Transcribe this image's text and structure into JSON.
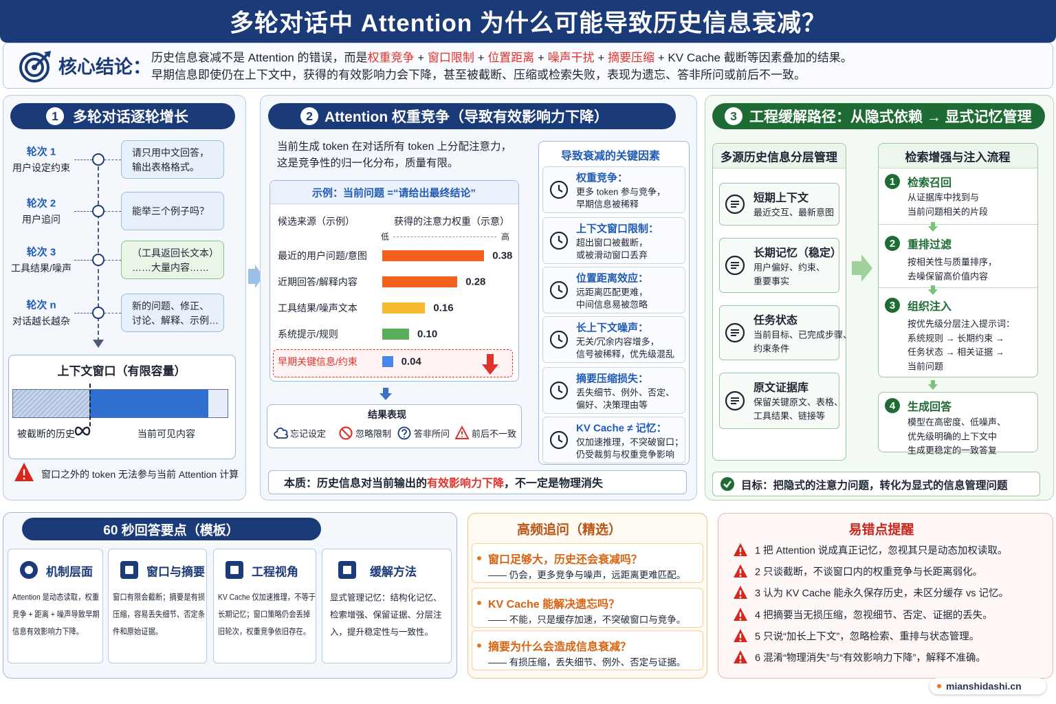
{
  "header": {
    "title": "多轮对话中 Attention 为什么可能导致历史信息衰减？"
  },
  "core": {
    "label": "核心结论：",
    "line1": [
      {
        "text": "历史信息衰减不是 Attention 的错误，而是"
      },
      {
        "text": "权重竞争",
        "em": true
      },
      {
        "text": " + "
      },
      {
        "text": "窗口限制",
        "em": true
      },
      {
        "text": " + "
      },
      {
        "text": "位置距离",
        "em": true
      },
      {
        "text": " + "
      },
      {
        "text": "噪声干扰",
        "em": true
      },
      {
        "text": " + "
      },
      {
        "text": "摘要压缩",
        "em": true
      },
      {
        "text": " + KV Cache 截断等因素叠加的结果。"
      }
    ],
    "line2": "早期信息即使仍在上下文中，获得的有效影响力会下降，甚至被截断、压缩或检索失败，表现为遗忘、答非所问或前后不一致。"
  },
  "panel1": {
    "num": "1",
    "title": "多轮对话逐轮增长",
    "turns": [
      {
        "round": "轮次 1",
        "desc": "用户设定约束",
        "bubble": [
          "请只用中文回答，",
          "输出表格格式。"
        ],
        "color": "#e8f0fb"
      },
      {
        "round": "轮次 2",
        "desc": "用户追问",
        "bubble": [
          "能举三个例子吗？"
        ],
        "color": "#e8f0fb"
      },
      {
        "round": "轮次 3",
        "desc": "工具结果/噪声",
        "bubble": [
          "（工具返回长文本）",
          "……大量内容……"
        ],
        "color": "#eaf5e8"
      },
      {
        "round": "轮次 n",
        "desc": "对话越长越杂",
        "bubble": [
          "新的问题、修正、",
          "讨论、解释、示例…"
        ],
        "color": "#e8f0fb"
      }
    ],
    "window": {
      "title": "上下文窗口（有限容量）",
      "left": "被截断的历史",
      "right": "当前可见内容"
    },
    "warning": "窗口之外的 token 无法参与当前 Attention 计算"
  },
  "panel2": {
    "num": "2",
    "title": "Attention 权重竞争（导致有效影响力下降）",
    "intro": [
      "当前生成 token 在对话所有 token 上分配注意力，",
      "这是竞争性的归一化分布，质量有限。"
    ],
    "example": {
      "title": "示例：当前问题 =“请给出最终结论”",
      "col1": "候选来源（示例）",
      "col2": "获得的注意力权重（示意）",
      "low": "低",
      "high": "高",
      "bars": {
        "categories": [
          "最近的用户问题/意图",
          "近期回答/解释内容",
          "工具结果/噪声文本",
          "系统提示/规则",
          "早期关键信息/约束"
        ],
        "values": [
          0.38,
          0.28,
          0.16,
          0.1,
          0.04
        ],
        "value_labels": [
          "0.38",
          "0.28",
          "0.16",
          "0.10",
          "0.04"
        ],
        "colors": [
          "#f2611d",
          "#f2611d",
          "#f6b92f",
          "#5aae5a",
          "#4a86e8"
        ]
      }
    },
    "results": {
      "title": "结果表现",
      "items": [
        "忘记设定",
        "忽略限制",
        "答非所问",
        "前后不一致"
      ]
    },
    "factors": {
      "title": "导致衰减的关键因素",
      "items": [
        {
          "title": "权重竞争：",
          "desc": [
            "更多 token 参与竞争，",
            "早期信息被稀释"
          ]
        },
        {
          "title": "上下文窗口限制：",
          "desc": [
            "超出窗口被截断，",
            "或被滑动窗口丢弃"
          ]
        },
        {
          "title": "位置距离效应：",
          "desc": [
            "远距离匹配更难，",
            "中间信息易被忽略"
          ]
        },
        {
          "title": "长上下文噪声：",
          "desc": [
            "无关/冗余内容增多，",
            "信号被稀释，优先级混乱"
          ]
        },
        {
          "title": "摘要压缩损失：",
          "desc": [
            "丢失细节、例外、否定、",
            "偏好、决策理由等"
          ]
        },
        {
          "title": "KV Cache ≠ 记忆：",
          "desc": [
            "仅加速推理，不突破窗口；",
            "仍受裁剪与权重竞争影响"
          ]
        }
      ]
    },
    "essence": [
      {
        "text": "本质：历史信息对当前输出的"
      },
      {
        "text": "有效影响力下降",
        "em": true
      },
      {
        "text": "，不一定是物理消失"
      }
    ]
  },
  "panel3": {
    "num": "3",
    "title": "工程缓解路径：从隐式依赖 → 显式记忆管理",
    "layers": {
      "title": "多源历史信息分层管理",
      "items": [
        {
          "title": "短期上下文",
          "desc": [
            "最近交互、最新意图"
          ]
        },
        {
          "title": "长期记忆（稳定）",
          "desc": [
            "用户偏好、约束、",
            "重要事实"
          ]
        },
        {
          "title": "任务状态",
          "desc": [
            "当前目标、已完成步骤、",
            "约束条件"
          ]
        },
        {
          "title": "原文证据库",
          "desc": [
            "保留关键原文、表格、",
            "工具结果、链接等"
          ]
        }
      ]
    },
    "flow": {
      "title": "检索增强与注入流程",
      "steps": [
        {
          "num": "1",
          "title": "检索召回",
          "desc": [
            "从证据库中找到与",
            "当前问题相关的片段"
          ]
        },
        {
          "num": "2",
          "title": "重排过滤",
          "desc": [
            "按相关性与质量排序，",
            "去噪保留高价值内容"
          ]
        },
        {
          "num": "3",
          "title": "组织注入",
          "desc": [
            "按优先级分层注入提示词：",
            "系统规则 → 长期约束 →",
            "任务状态 → 相关证据 →",
            "当前问题"
          ]
        },
        {
          "num": "4",
          "title": "生成回答",
          "desc": [
            "模型在高密度、低噪声、",
            "优先级明确的上下文中",
            "生成更稳定的一致答复"
          ]
        }
      ]
    },
    "goal": "目标：把隐式的注意力问题，转化为显式的信息管理问题"
  },
  "answer": {
    "title": "60 秒回答要点（模板）",
    "cards": [
      {
        "title": "机制层面",
        "desc": [
          "Attention 是动态读取，权重",
          "竞争 + 距离 + 噪声导致早期",
          "信息有效影响力下降。"
        ]
      },
      {
        "title": "窗口与摘要",
        "desc": [
          "窗口有限会截断；摘要是有损",
          "压缩，容易丢失细节、否定条",
          "件和原始证据。"
        ]
      },
      {
        "title": "工程视角",
        "desc": [
          "KV Cache 仅加速推理，不等于",
          "长期记忆；窗口策略仍会丢掉",
          "旧轮次，权重竞争依旧存在。"
        ]
      },
      {
        "title": "缓解方法",
        "desc": [
          "显式管理记忆：结构化记忆、",
          "检索增强、保留证据、分层注",
          "入，提升稳定性与一致性。"
        ]
      }
    ]
  },
  "followups": {
    "title": "高频追问（精选）",
    "items": [
      {
        "q": "窗口足够大，历史还会衰减吗？",
        "a": "—— 仍会，更多竞争与噪声，远距离更难匹配。"
      },
      {
        "q": "KV Cache 能解决遗忘吗？",
        "a": "—— 不能，只是缓存加速，不突破窗口与竞争。"
      },
      {
        "q": "摘要为什么会造成信息衰减？",
        "a": "—— 有损压缩，丢失细节、例外、否定与证据。"
      }
    ]
  },
  "mistakes": {
    "title": "易错点提醒",
    "items": [
      "1 把 Attention 说成真正记忆，忽视其只是动态加权读取。",
      "2 只谈截断，不谈窗口内的权重竞争与长距离弱化。",
      "3 认为 KV Cache 能永久保存历史，未区分缓存 vs 记忆。",
      "4 把摘要当无损压缩，忽视细节、否定、证据的丢失。",
      "5 只说“加长上下文”，忽略检索、重排与状态管理。",
      "6 混淆“物理消失”与“有效影响力下降”，解释不准确。"
    ]
  },
  "footer": "mianshidashi.cn"
}
